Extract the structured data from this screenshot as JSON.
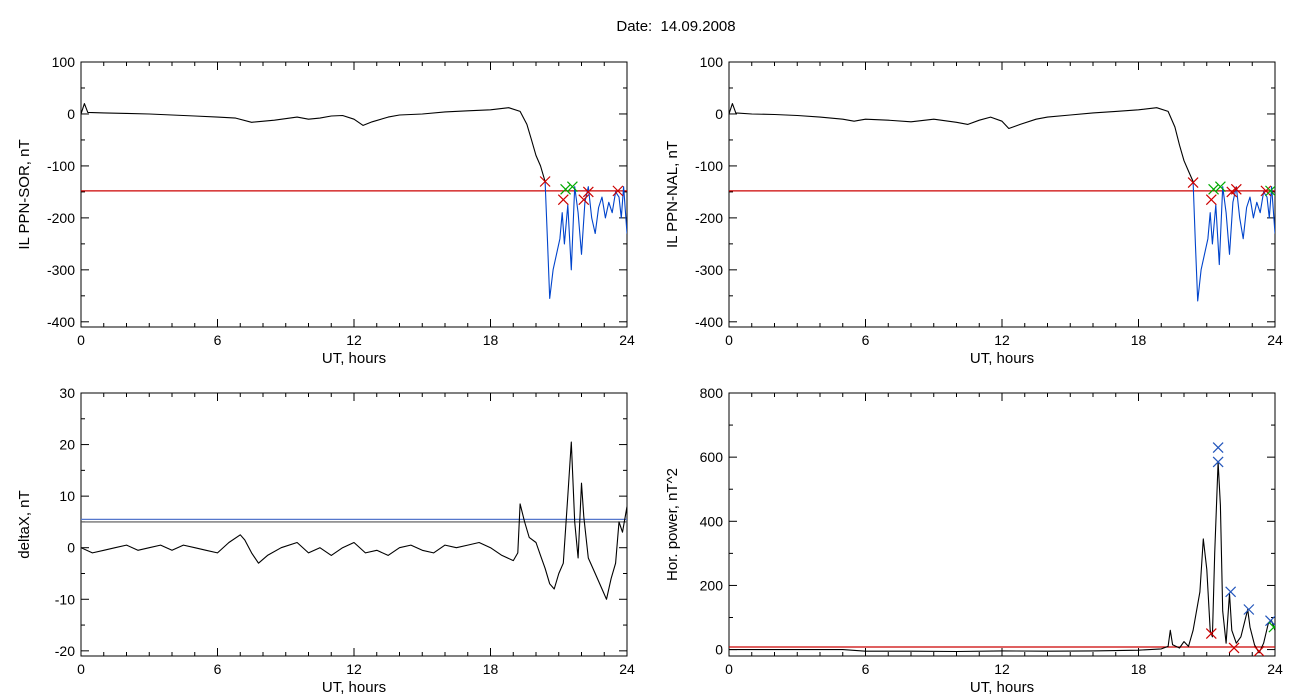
{
  "page": {
    "title": "Date:  14.09.2008"
  },
  "chart_data": [
    {
      "id": "sor",
      "type": "line",
      "xlabel": "UT, hours",
      "ylabel": "IL PPN-SOR, nT",
      "xlim": [
        0,
        24
      ],
      "ylim": [
        -410,
        100
      ],
      "xticks": [
        0,
        6,
        12,
        18,
        24
      ],
      "yticks": [
        100,
        0,
        -100,
        -200,
        -300,
        -400
      ],
      "series": [
        {
          "color": "#000000",
          "points": [
            [
              0,
              0
            ],
            [
              0.15,
              20
            ],
            [
              0.3,
              3
            ],
            [
              1,
              2
            ],
            [
              2,
              1
            ],
            [
              3,
              0
            ],
            [
              4,
              -2
            ],
            [
              5,
              -4
            ],
            [
              6,
              -6
            ],
            [
              6.8,
              -8
            ],
            [
              7.5,
              -16
            ],
            [
              8.5,
              -12
            ],
            [
              9.5,
              -6
            ],
            [
              10,
              -10
            ],
            [
              10.5,
              -8
            ],
            [
              11,
              -4
            ],
            [
              11.5,
              -3
            ],
            [
              12,
              -10
            ],
            [
              12.4,
              -22
            ],
            [
              12.8,
              -15
            ],
            [
              13.5,
              -6
            ],
            [
              14,
              -2
            ],
            [
              15,
              0
            ],
            [
              16,
              4
            ],
            [
              17,
              6
            ],
            [
              18,
              8
            ],
            [
              18.8,
              12
            ],
            [
              19.3,
              5
            ],
            [
              19.6,
              -20
            ],
            [
              19.8,
              -50
            ],
            [
              20,
              -80
            ],
            [
              20.2,
              -100
            ],
            [
              20.4,
              -130
            ]
          ]
        },
        {
          "color": "#0044cc",
          "points": [
            [
              20.4,
              -130
            ],
            [
              20.5,
              -240
            ],
            [
              20.6,
              -355
            ],
            [
              20.75,
              -300
            ],
            [
              20.9,
              -270
            ],
            [
              21.05,
              -240
            ],
            [
              21.15,
              -190
            ],
            [
              21.25,
              -250
            ],
            [
              21.4,
              -175
            ],
            [
              21.55,
              -300
            ],
            [
              21.7,
              -140
            ],
            [
              21.85,
              -190
            ],
            [
              22,
              -270
            ],
            [
              22.15,
              -170
            ],
            [
              22.3,
              -140
            ],
            [
              22.45,
              -200
            ],
            [
              22.6,
              -230
            ],
            [
              22.75,
              -180
            ],
            [
              22.9,
              -160
            ],
            [
              23.05,
              -200
            ],
            [
              23.2,
              -170
            ],
            [
              23.35,
              -190
            ],
            [
              23.5,
              -150
            ],
            [
              23.65,
              -160
            ],
            [
              23.75,
              -200
            ],
            [
              23.85,
              -140
            ],
            [
              24,
              -230
            ]
          ]
        }
      ],
      "threshold": {
        "y": -148,
        "color": "#cc0000"
      },
      "markers": [
        {
          "x": 20.4,
          "y": -130,
          "color": "#cc0000"
        },
        {
          "x": 21.2,
          "y": -165,
          "color": "#cc0000"
        },
        {
          "x": 21.3,
          "y": -145,
          "color": "#00aa00"
        },
        {
          "x": 21.6,
          "y": -140,
          "color": "#00aa00"
        },
        {
          "x": 22.1,
          "y": -165,
          "color": "#cc0000"
        },
        {
          "x": 22.3,
          "y": -150,
          "color": "#cc0000"
        },
        {
          "x": 23.6,
          "y": -148,
          "color": "#cc0000"
        }
      ]
    },
    {
      "id": "nal",
      "type": "line",
      "xlabel": "UT, hours",
      "ylabel": "IL PPN-NAL, nT",
      "xlim": [
        0,
        24
      ],
      "ylim": [
        -410,
        100
      ],
      "xticks": [
        0,
        6,
        12,
        18,
        24
      ],
      "yticks": [
        100,
        0,
        -100,
        -200,
        -300,
        -400
      ],
      "series": [
        {
          "color": "#000000",
          "points": [
            [
              0,
              0
            ],
            [
              0.15,
              20
            ],
            [
              0.3,
              2
            ],
            [
              1,
              0
            ],
            [
              2,
              -1
            ],
            [
              3,
              -3
            ],
            [
              4,
              -6
            ],
            [
              5,
              -10
            ],
            [
              5.5,
              -14
            ],
            [
              6,
              -10
            ],
            [
              7,
              -12
            ],
            [
              8,
              -15
            ],
            [
              9,
              -10
            ],
            [
              10,
              -16
            ],
            [
              10.5,
              -20
            ],
            [
              11,
              -12
            ],
            [
              11.5,
              -6
            ],
            [
              12,
              -14
            ],
            [
              12.3,
              -28
            ],
            [
              12.8,
              -20
            ],
            [
              13.5,
              -10
            ],
            [
              14,
              -6
            ],
            [
              15,
              -2
            ],
            [
              16,
              2
            ],
            [
              17,
              5
            ],
            [
              18,
              8
            ],
            [
              18.8,
              12
            ],
            [
              19.3,
              5
            ],
            [
              19.6,
              -25
            ],
            [
              19.8,
              -60
            ],
            [
              20,
              -90
            ],
            [
              20.2,
              -110
            ],
            [
              20.4,
              -130
            ]
          ]
        },
        {
          "color": "#0044cc",
          "points": [
            [
              20.4,
              -130
            ],
            [
              20.5,
              -250
            ],
            [
              20.6,
              -360
            ],
            [
              20.75,
              -300
            ],
            [
              20.9,
              -270
            ],
            [
              21.05,
              -240
            ],
            [
              21.15,
              -190
            ],
            [
              21.25,
              -250
            ],
            [
              21.4,
              -175
            ],
            [
              21.55,
              -290
            ],
            [
              21.7,
              -140
            ],
            [
              21.85,
              -190
            ],
            [
              22,
              -270
            ],
            [
              22.15,
              -170
            ],
            [
              22.3,
              -140
            ],
            [
              22.45,
              -200
            ],
            [
              22.6,
              -240
            ],
            [
              22.75,
              -180
            ],
            [
              22.9,
              -160
            ],
            [
              23.05,
              -200
            ],
            [
              23.2,
              -170
            ],
            [
              23.35,
              -190
            ],
            [
              23.5,
              -150
            ],
            [
              23.65,
              -160
            ],
            [
              23.75,
              -200
            ],
            [
              23.85,
              -140
            ],
            [
              24,
              -230
            ]
          ]
        }
      ],
      "threshold": {
        "y": -148,
        "color": "#cc0000"
      },
      "markers": [
        {
          "x": 20.4,
          "y": -132,
          "color": "#cc0000"
        },
        {
          "x": 21.2,
          "y": -165,
          "color": "#cc0000"
        },
        {
          "x": 21.3,
          "y": -145,
          "color": "#00aa00"
        },
        {
          "x": 21.6,
          "y": -140,
          "color": "#00aa00"
        },
        {
          "x": 22.1,
          "y": -150,
          "color": "#cc0000"
        },
        {
          "x": 22.3,
          "y": -145,
          "color": "#cc0000"
        },
        {
          "x": 23.6,
          "y": -148,
          "color": "#cc0000"
        },
        {
          "x": 23.8,
          "y": -148,
          "color": "#00aa00"
        }
      ]
    },
    {
      "id": "deltax",
      "type": "line",
      "xlabel": "UT, hours",
      "ylabel": "deltaX, nT",
      "xlim": [
        0,
        24
      ],
      "ylim": [
        -21,
        30
      ],
      "xticks": [
        0,
        6,
        12,
        18,
        24
      ],
      "yticks": [
        30,
        20,
        10,
        0,
        -10,
        -20
      ],
      "series": [
        {
          "color": "#000000",
          "points": [
            [
              0,
              0
            ],
            [
              0.5,
              -1
            ],
            [
              1,
              -0.5
            ],
            [
              1.5,
              0
            ],
            [
              2,
              0.5
            ],
            [
              2.5,
              -0.5
            ],
            [
              3,
              0
            ],
            [
              3.5,
              0.5
            ],
            [
              4,
              -0.5
            ],
            [
              4.5,
              0.5
            ],
            [
              5,
              0
            ],
            [
              5.5,
              -0.5
            ],
            [
              6,
              -1
            ],
            [
              6.5,
              1
            ],
            [
              7,
              2.5
            ],
            [
              7.2,
              1.5
            ],
            [
              7.5,
              -1
            ],
            [
              7.8,
              -3
            ],
            [
              8.2,
              -1.5
            ],
            [
              8.8,
              0
            ],
            [
              9.5,
              1
            ],
            [
              10,
              -1
            ],
            [
              10.5,
              0
            ],
            [
              11,
              -1.5
            ],
            [
              11.5,
              0
            ],
            [
              12,
              1
            ],
            [
              12.5,
              -1
            ],
            [
              13,
              -0.5
            ],
            [
              13.5,
              -1.5
            ],
            [
              14,
              0
            ],
            [
              14.5,
              0.5
            ],
            [
              15,
              -0.5
            ],
            [
              15.5,
              -1
            ],
            [
              16,
              0.5
            ],
            [
              16.5,
              0
            ],
            [
              17,
              0.5
            ],
            [
              17.5,
              1
            ],
            [
              18,
              0
            ],
            [
              18.5,
              -1.5
            ],
            [
              19,
              -2.5
            ],
            [
              19.2,
              -1
            ],
            [
              19.3,
              8.5
            ],
            [
              19.5,
              5
            ],
            [
              19.7,
              2
            ],
            [
              20,
              1
            ],
            [
              20.2,
              -1.5
            ],
            [
              20.4,
              -4
            ],
            [
              20.6,
              -7
            ],
            [
              20.8,
              -8
            ],
            [
              21,
              -5
            ],
            [
              21.2,
              -3
            ],
            [
              21.4,
              10
            ],
            [
              21.55,
              20.5
            ],
            [
              21.7,
              5
            ],
            [
              21.85,
              -2
            ],
            [
              22,
              12.5
            ],
            [
              22.1,
              6
            ],
            [
              22.3,
              -2
            ],
            [
              22.6,
              -5
            ],
            [
              22.9,
              -8
            ],
            [
              23.1,
              -10
            ],
            [
              23.3,
              -6
            ],
            [
              23.5,
              -3
            ],
            [
              23.65,
              5
            ],
            [
              23.8,
              3
            ],
            [
              24,
              8
            ]
          ]
        }
      ],
      "threshold_lines": [
        {
          "y": 5.5,
          "color": "#5577cc"
        },
        {
          "y": 5.0,
          "color": "#555555"
        }
      ]
    },
    {
      "id": "power",
      "type": "line",
      "xlabel": "UT, hours",
      "ylabel": "Hor. power, nT^2",
      "xlim": [
        0,
        24
      ],
      "ylim": [
        -20,
        800
      ],
      "xticks": [
        0,
        6,
        12,
        18,
        24
      ],
      "yticks": [
        800,
        600,
        400,
        200,
        0
      ],
      "series": [
        {
          "color": "#000000",
          "points": [
            [
              0,
              0
            ],
            [
              5,
              0
            ],
            [
              6,
              -5
            ],
            [
              8,
              -5
            ],
            [
              10,
              -6
            ],
            [
              12,
              -4
            ],
            [
              14,
              -5
            ],
            [
              16,
              -4
            ],
            [
              18,
              -2
            ],
            [
              19,
              2
            ],
            [
              19.3,
              10
            ],
            [
              19.4,
              60
            ],
            [
              19.5,
              15
            ],
            [
              19.8,
              5
            ],
            [
              20,
              25
            ],
            [
              20.2,
              10
            ],
            [
              20.4,
              60
            ],
            [
              20.7,
              180
            ],
            [
              20.85,
              345
            ],
            [
              21,
              250
            ],
            [
              21.15,
              60
            ],
            [
              21.25,
              40
            ],
            [
              21.35,
              300
            ],
            [
              21.5,
              585
            ],
            [
              21.6,
              450
            ],
            [
              21.7,
              120
            ],
            [
              21.85,
              20
            ],
            [
              22,
              175
            ],
            [
              22.1,
              60
            ],
            [
              22.3,
              20
            ],
            [
              22.5,
              40
            ],
            [
              22.8,
              125
            ],
            [
              22.9,
              70
            ],
            [
              23.1,
              15
            ],
            [
              23.3,
              -10
            ],
            [
              23.5,
              20
            ],
            [
              23.7,
              80
            ],
            [
              23.85,
              90
            ],
            [
              24,
              60
            ]
          ]
        }
      ],
      "threshold": {
        "y": 8,
        "color": "#cc0000"
      },
      "markers": [
        {
          "x": 21.5,
          "y": 630,
          "color": "#2255bb"
        },
        {
          "x": 21.5,
          "y": 585,
          "color": "#2255bb"
        },
        {
          "x": 22.05,
          "y": 180,
          "color": "#2255bb"
        },
        {
          "x": 22.85,
          "y": 125,
          "color": "#2255bb"
        },
        {
          "x": 23.8,
          "y": 90,
          "color": "#2255bb"
        },
        {
          "x": 23.95,
          "y": 70,
          "color": "#00aa00"
        },
        {
          "x": 21.2,
          "y": 50,
          "color": "#cc0000"
        },
        {
          "x": 22.2,
          "y": 5,
          "color": "#cc0000"
        },
        {
          "x": 23.3,
          "y": -5,
          "color": "#cc0000"
        }
      ]
    }
  ]
}
